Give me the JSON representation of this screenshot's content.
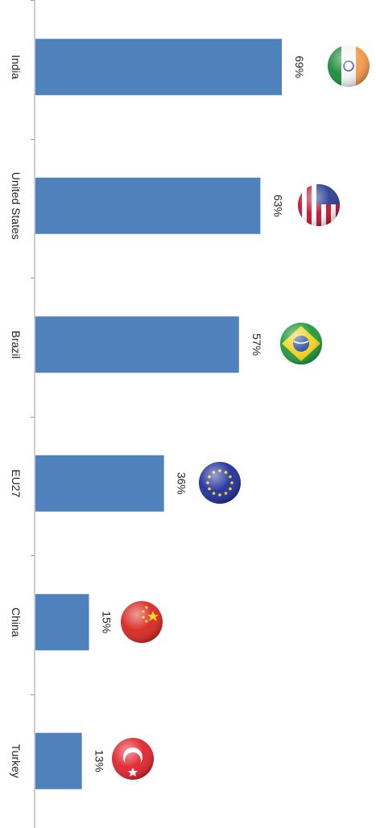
{
  "chart_data": {
    "type": "bar",
    "orientation": "horizontal",
    "categories": [
      "India",
      "United States",
      "Brazil",
      "EU27",
      "China",
      "Turkey"
    ],
    "values": [
      69,
      63,
      57,
      36,
      15,
      13
    ],
    "value_labels": [
      "69%",
      "63%",
      "57%",
      "36%",
      "15%",
      "13%"
    ],
    "value_unit": "%",
    "bar_color": "#4f81bd",
    "grid": false,
    "legend": "none",
    "title": "",
    "xlabel": "",
    "ylabel": "",
    "flag_icons": [
      "india-flag-icon",
      "united-states-flag-icon",
      "brazil-flag-icon",
      "eu27-flag-icon",
      "china-flag-icon",
      "turkey-flag-icon"
    ]
  }
}
